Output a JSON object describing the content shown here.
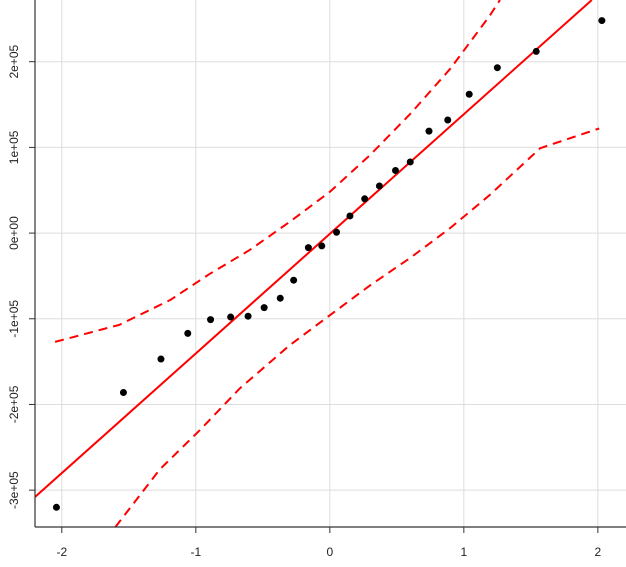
{
  "chart_data": {
    "type": "scatter",
    "xlim": [
      -2.2,
      2.21
    ],
    "ylim": [
      -343000,
      272000
    ],
    "xticks": [
      -2,
      -1,
      0,
      1,
      2
    ],
    "yticks": [
      {
        "value": -300000,
        "label": "-3e+05"
      },
      {
        "value": -200000,
        "label": "-2e+05"
      },
      {
        "value": -100000,
        "label": "-1e+05"
      },
      {
        "value": 0,
        "label": "0e+00"
      },
      {
        "value": 100000,
        "label": "1e+05"
      },
      {
        "value": 200000,
        "label": "2e+05"
      }
    ],
    "grid": true,
    "points": {
      "color": "#000000",
      "x": [
        -2.04,
        -1.54,
        -1.26,
        -1.06,
        -0.89,
        -0.74,
        -0.61,
        -0.49,
        -0.37,
        -0.27,
        -0.16,
        -0.06,
        0.05,
        0.15,
        0.26,
        0.37,
        0.49,
        0.6,
        0.74,
        0.88,
        1.04,
        1.25,
        1.54,
        2.03
      ],
      "y": [
        -320000,
        -186000,
        -147000,
        -117000,
        -101000,
        -98000,
        -97000,
        -87000,
        -76000,
        -55000,
        -17000,
        -15000,
        1000,
        20000,
        40000,
        55000,
        73000,
        83000,
        119000,
        132000,
        162000,
        193000,
        212000,
        248000
      ]
    },
    "reference_line": {
      "color": "#ff0000",
      "x": [
        -2.2,
        1.955
      ],
      "y": [
        -308000,
        272000
      ]
    },
    "confidence_band": {
      "color": "#ff0000",
      "upper": {
        "x": [
          -2.05,
          -1.57,
          -1.19,
          -0.9,
          -0.6,
          -0.3,
          0,
          0.3,
          0.6,
          0.9,
          1.19,
          1.27
        ],
        "y": [
          -127000,
          -107000,
          -78000,
          -48000,
          -20000,
          13000,
          48000,
          91000,
          139000,
          192000,
          253000,
          272000
        ]
      },
      "lower": {
        "x": [
          -1.6,
          -1.27,
          -0.97,
          -0.67,
          -0.3,
          0,
          0.3,
          0.6,
          0.9,
          1.19,
          1.57,
          2.01
        ],
        "y": [
          -343000,
          -276000,
          -230000,
          -181000,
          -131000,
          -96000,
          -61000,
          -29000,
          6000,
          44000,
          99000,
          122000
        ]
      }
    }
  }
}
